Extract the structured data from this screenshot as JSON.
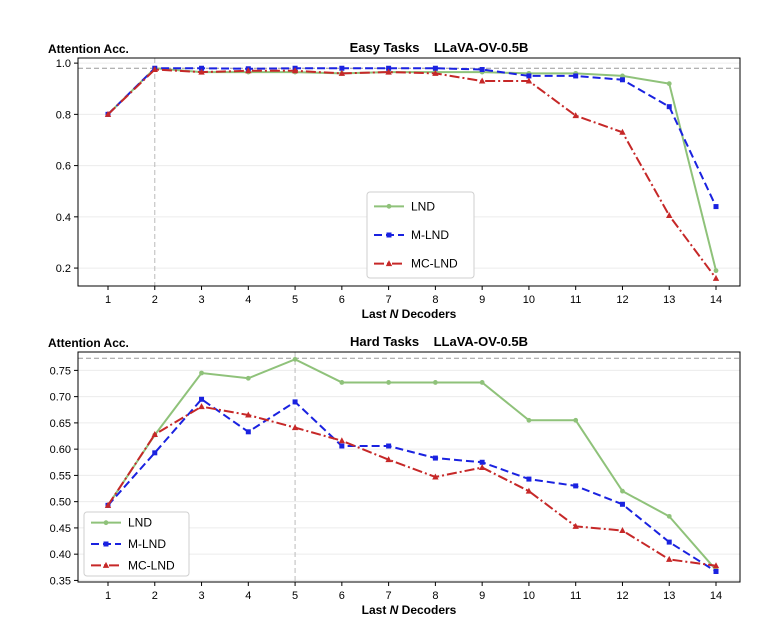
{
  "chart_data": [
    {
      "type": "line",
      "title": "Easy Tasks    LLaVA-OV-0.5B",
      "ylabel": "Attention Acc.",
      "xlabel": "Last N Decoders",
      "categories": [
        1,
        2,
        3,
        4,
        5,
        6,
        7,
        8,
        9,
        10,
        11,
        12,
        13,
        14
      ],
      "ylim": [
        0.13,
        1.02
      ],
      "yticks": [
        0.2,
        0.4,
        0.6,
        0.8,
        1.0
      ],
      "ytick_labels": [
        "0.2",
        "0.4",
        "0.6",
        "0.8",
        "1.0"
      ],
      "reference_hline": 0.98,
      "reference_vline": 2,
      "legend_position": "lower-center",
      "grid": true,
      "series": [
        {
          "name": "LND",
          "color": "#8fc27a",
          "dash": "",
          "marker": "dot",
          "values": [
            0.8,
            0.98,
            0.965,
            0.965,
            0.965,
            0.96,
            0.965,
            0.965,
            0.965,
            0.96,
            0.96,
            0.95,
            0.92,
            0.19
          ]
        },
        {
          "name": "M-LND",
          "color": "#1a22e0",
          "dash": "8,4",
          "marker": "square",
          "values": [
            0.8,
            0.98,
            0.98,
            0.978,
            0.98,
            0.98,
            0.98,
            0.98,
            0.975,
            0.95,
            0.95,
            0.935,
            0.83,
            0.44
          ]
        },
        {
          "name": "MC-LND",
          "color": "#c62828",
          "dash": "10,3,2,3",
          "marker": "triangle",
          "values": [
            0.8,
            0.975,
            0.965,
            0.97,
            0.97,
            0.96,
            0.965,
            0.96,
            0.93,
            0.93,
            0.795,
            0.73,
            0.405,
            0.16
          ]
        }
      ]
    },
    {
      "type": "line",
      "title": "Hard Tasks    LLaVA-OV-0.5B",
      "ylabel": "Attention Acc.",
      "xlabel": "Last N Decoders",
      "categories": [
        1,
        2,
        3,
        4,
        5,
        6,
        7,
        8,
        9,
        10,
        11,
        12,
        13,
        14
      ],
      "ylim": [
        0.347,
        0.785
      ],
      "yticks": [
        0.35,
        0.4,
        0.45,
        0.5,
        0.55,
        0.6,
        0.65,
        0.7,
        0.75
      ],
      "ytick_labels": [
        "0.35",
        "0.40",
        "0.45",
        "0.50",
        "0.55",
        "0.60",
        "0.65",
        "0.70",
        "0.75"
      ],
      "reference_hline": 0.773,
      "reference_vline": 5,
      "legend_position": "lower-left",
      "grid": true,
      "series": [
        {
          "name": "LND",
          "color": "#8fc27a",
          "dash": "",
          "marker": "dot",
          "values": [
            0.493,
            0.627,
            0.745,
            0.735,
            0.771,
            0.727,
            0.727,
            0.727,
            0.727,
            0.655,
            0.655,
            0.52,
            0.472,
            0.37
          ]
        },
        {
          "name": "M-LND",
          "color": "#1a22e0",
          "dash": "8,4",
          "marker": "square",
          "values": [
            0.493,
            0.593,
            0.695,
            0.633,
            0.69,
            0.606,
            0.606,
            0.583,
            0.575,
            0.543,
            0.53,
            0.495,
            0.423,
            0.367
          ]
        },
        {
          "name": "MC-LND",
          "color": "#c62828",
          "dash": "10,3,2,3",
          "marker": "triangle",
          "values": [
            0.493,
            0.628,
            0.681,
            0.665,
            0.641,
            0.616,
            0.58,
            0.547,
            0.565,
            0.52,
            0.453,
            0.445,
            0.39,
            0.378
          ]
        }
      ]
    }
  ]
}
